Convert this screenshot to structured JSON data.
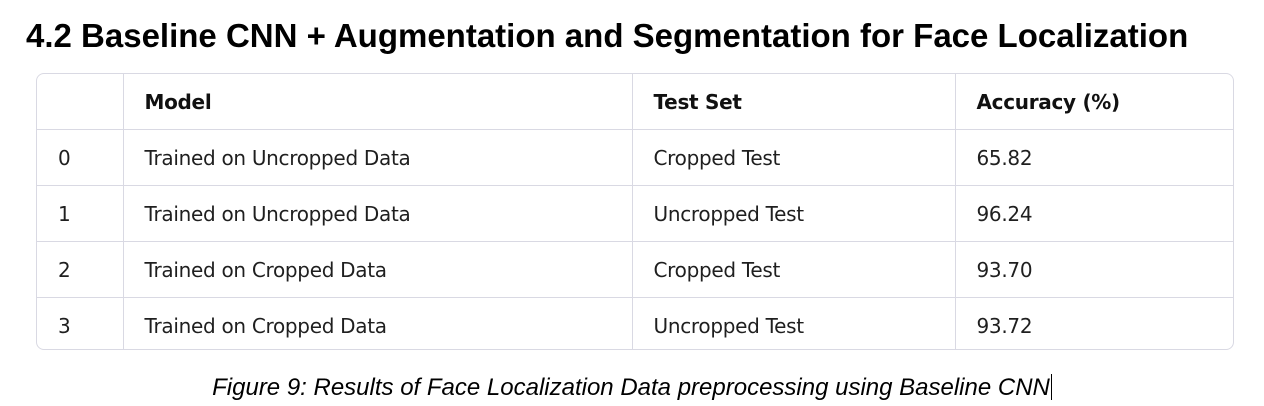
{
  "heading": "4.2 Baseline CNN + Augmentation and Segmentation for Face Localization",
  "table": {
    "columns": [
      "",
      "Model",
      "Test Set",
      "Accuracy (%)"
    ],
    "rows": [
      {
        "index": "0",
        "model": "Trained on Uncropped Data",
        "test_set": "Cropped Test",
        "accuracy": "65.82"
      },
      {
        "index": "1",
        "model": "Trained on Uncropped Data",
        "test_set": "Uncropped Test",
        "accuracy": "96.24"
      },
      {
        "index": "2",
        "model": "Trained on Cropped Data",
        "test_set": "Cropped Test",
        "accuracy": "93.70"
      },
      {
        "index": "3",
        "model": "Trained on Cropped Data",
        "test_set": "Uncropped Test",
        "accuracy": "93.72"
      }
    ]
  },
  "caption": "Figure 9: Results of Face Localization Data preprocessing using Baseline CNN"
}
